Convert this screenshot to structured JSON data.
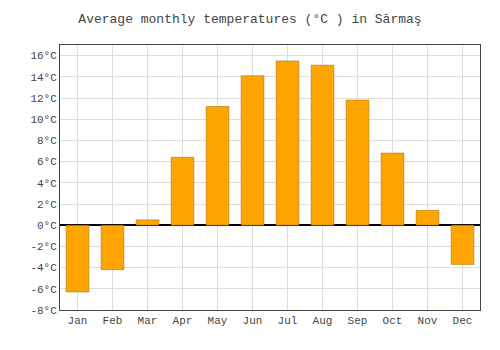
{
  "chart_data": {
    "type": "bar",
    "title": "Average monthly temperatures (°C ) in Sărmaş",
    "categories": [
      "Jan",
      "Feb",
      "Mar",
      "Apr",
      "May",
      "Jun",
      "Jul",
      "Aug",
      "Sep",
      "Oct",
      "Nov",
      "Dec"
    ],
    "values": [
      -6.3,
      -4.2,
      0.5,
      6.4,
      11.2,
      14.1,
      15.5,
      15.1,
      11.8,
      6.8,
      1.4,
      -3.7
    ],
    "color": "#FFA500",
    "ylim": [
      -8,
      17
    ],
    "yticks": [
      {
        "value": -8,
        "label": "-8°C"
      },
      {
        "value": -6,
        "label": "-6°C"
      },
      {
        "value": -4,
        "label": "-4°C"
      },
      {
        "value": -2,
        "label": "-2°C"
      },
      {
        "value": 0,
        "label": "0°C"
      },
      {
        "value": 2,
        "label": "2°C"
      },
      {
        "value": 4,
        "label": "4°C"
      },
      {
        "value": 6,
        "label": "6°C"
      },
      {
        "value": 8,
        "label": "8°C"
      },
      {
        "value": 10,
        "label": "10°C"
      },
      {
        "value": 12,
        "label": "12°C"
      },
      {
        "value": 14,
        "label": "14°C"
      },
      {
        "value": 16,
        "label": "16°C"
      }
    ],
    "grid": true
  }
}
